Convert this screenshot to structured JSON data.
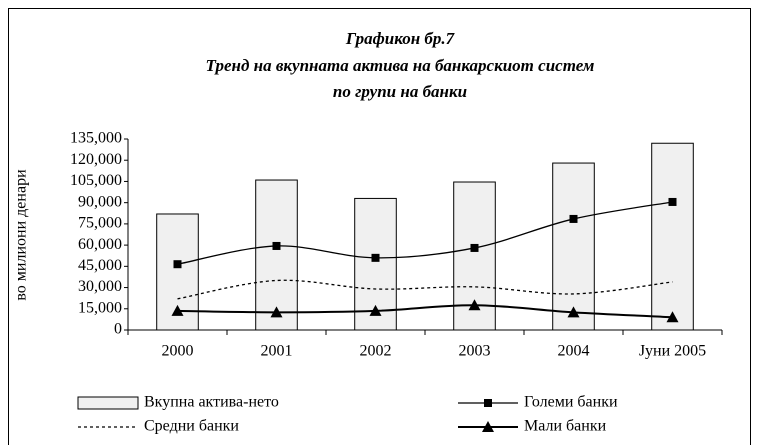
{
  "chart_data": {
    "type": "bar",
    "title": "Графикон бр.7",
    "subtitle": [
      "Тренд на вкупната актива на банкарскиот систем",
      "по групи на банки"
    ],
    "y_label": "во милиони денари",
    "categories": [
      "2000",
      "2001",
      "2002",
      "2003",
      "2004",
      "Јуни 2005"
    ],
    "series": [
      {
        "name": "Вкупна актива-нето",
        "type": "bar",
        "color": "#f0f0f0",
        "values": [
          82000,
          106000,
          93000,
          104600,
          118000,
          132000
        ]
      },
      {
        "name": "Големи банки",
        "type": "line",
        "color": "#000000",
        "marker": "square",
        "values": [
          46500,
          59400,
          51000,
          58000,
          78500,
          90500
        ]
      },
      {
        "name": "Средни банки",
        "type": "line",
        "color": "#000000",
        "line_style": "dotted",
        "values": [
          22000,
          35000,
          29000,
          30500,
          25500,
          34000
        ]
      },
      {
        "name": "Мали банки",
        "type": "line",
        "color": "#000000",
        "marker": "triangle",
        "values": [
          13500,
          12500,
          13500,
          17500,
          12500,
          9000
        ]
      }
    ],
    "ylim": [
      0,
      135000
    ],
    "yticks": [
      0,
      {
        "value": 15000,
        "label": "15,000"
      },
      {
        "value": 30000,
        "label": "30,000"
      },
      {
        "value": 45000,
        "label": "45,000"
      },
      {
        "value": 60000,
        "label": "60,000"
      },
      {
        "value": 75000,
        "label": "75,000"
      },
      {
        "value": 90000,
        "label": "90,000"
      },
      {
        "value": 105000,
        "label": "105,000"
      },
      {
        "value": 120000,
        "label": "120,000"
      },
      {
        "value": 135000,
        "label": "135,000"
      }
    ],
    "smooth": true,
    "legend": "bottom"
  }
}
